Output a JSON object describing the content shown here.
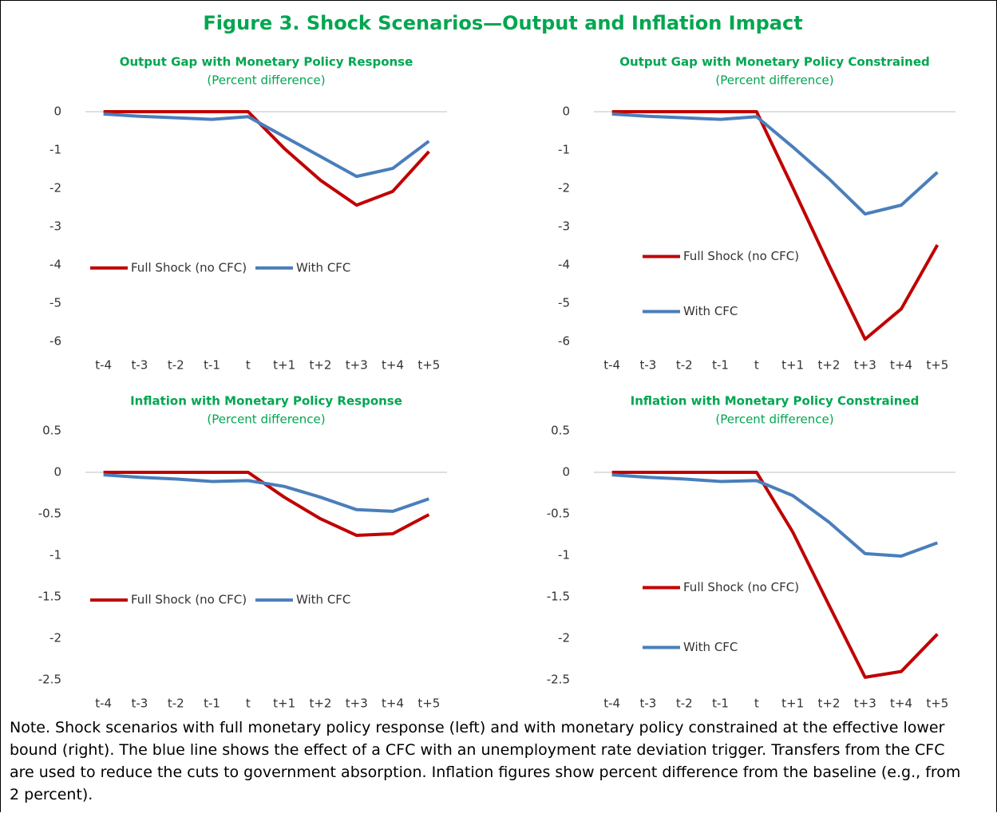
{
  "title": "Figure 3. Shock Scenarios—Output and Inflation Impact",
  "note": "Note. Shock scenarios with full monetary policy response (left) and with monetary policy constrained at the effective lower bound (right). The blue line shows the effect of a CFC with an unemployment rate deviation trigger. Transfers from the CFC are used to reduce the cuts to government absorption. Inflation figures show percent difference from the baseline (e.g., from 2 percent).",
  "chart_data": [
    {
      "type": "line",
      "title": "Output Gap with Monetary Policy Response",
      "subtitle": "(Percent difference)",
      "categories": [
        "t-4",
        "t-3",
        "t-2",
        "t-1",
        "t",
        "t+1",
        "t+2",
        "t+3",
        "t+4",
        "t+5"
      ],
      "ylim": [
        -6,
        0
      ],
      "yticks": [
        0,
        -1,
        -2,
        -3,
        -4,
        -5,
        -6
      ],
      "grid": false,
      "legend": "row",
      "series": [
        {
          "name": "Full Shock (no CFC)",
          "color": "#c00000",
          "values": [
            0,
            0,
            0,
            0,
            0,
            -0.96,
            -1.79,
            -2.44,
            -2.08,
            -1.04
          ]
        },
        {
          "name": "With CFC",
          "color": "#4a7ebb",
          "values": [
            -0.06,
            -0.12,
            -0.16,
            -0.2,
            -0.13,
            -0.65,
            -1.17,
            -1.69,
            -1.48,
            -0.77
          ]
        }
      ]
    },
    {
      "type": "line",
      "title": "Output Gap with Monetary Policy Constrained",
      "subtitle": "(Percent difference)",
      "categories": [
        "t-4",
        "t-3",
        "t-2",
        "t-1",
        "t",
        "t+1",
        "t+2",
        "t+3",
        "t+4",
        "t+5"
      ],
      "ylim": [
        -6,
        0
      ],
      "yticks": [
        0,
        -1,
        -2,
        -3,
        -4,
        -5,
        -6
      ],
      "grid": false,
      "legend": "column",
      "series": [
        {
          "name": "Full Shock (no CFC)",
          "color": "#c00000",
          "values": [
            0,
            0,
            0,
            0,
            0,
            -1.98,
            -4.0,
            -5.94,
            -5.15,
            -3.48
          ]
        },
        {
          "name": "With CFC",
          "color": "#4a7ebb",
          "values": [
            -0.06,
            -0.12,
            -0.16,
            -0.2,
            -0.13,
            -0.92,
            -1.75,
            -2.67,
            -2.44,
            -1.58
          ]
        }
      ]
    },
    {
      "type": "line",
      "title": "Inflation with Monetary Policy Response",
      "subtitle": "(Percent difference)",
      "categories": [
        "t-4",
        "t-3",
        "t-2",
        "t-1",
        "t",
        "t+1",
        "t+2",
        "t+3",
        "t+4",
        "t+5"
      ],
      "ylim": [
        -2.5,
        0.5
      ],
      "yticks": [
        0.5,
        0,
        -0.5,
        -1,
        -1.5,
        -2,
        -2.5
      ],
      "grid": false,
      "legend": "row",
      "series": [
        {
          "name": "Full Shock (no CFC)",
          "color": "#c00000",
          "values": [
            0,
            0,
            0,
            0,
            0,
            -0.3,
            -0.56,
            -0.76,
            -0.74,
            -0.51
          ]
        },
        {
          "name": "With CFC",
          "color": "#4a7ebb",
          "values": [
            -0.03,
            -0.06,
            -0.08,
            -0.11,
            -0.1,
            -0.17,
            -0.3,
            -0.45,
            -0.47,
            -0.32
          ]
        }
      ]
    },
    {
      "type": "line",
      "title": "Inflation with Monetary Policy Constrained",
      "subtitle": "(Percent difference)",
      "categories": [
        "t-4",
        "t-3",
        "t-2",
        "t-1",
        "t",
        "t+1",
        "t+2",
        "t+3",
        "t+4",
        "t+5"
      ],
      "ylim": [
        -2.5,
        0.5
      ],
      "yticks": [
        0.5,
        0,
        -0.5,
        -1,
        -1.5,
        -2,
        -2.5
      ],
      "grid": false,
      "legend": "column",
      "series": [
        {
          "name": "Full Shock (no CFC)",
          "color": "#c00000",
          "values": [
            0,
            0,
            0,
            0,
            0,
            -0.72,
            -1.6,
            -2.47,
            -2.4,
            -1.95
          ]
        },
        {
          "name": "With CFC",
          "color": "#4a7ebb",
          "values": [
            -0.03,
            -0.06,
            -0.08,
            -0.11,
            -0.1,
            -0.28,
            -0.6,
            -0.98,
            -1.01,
            -0.85
          ]
        }
      ]
    }
  ]
}
